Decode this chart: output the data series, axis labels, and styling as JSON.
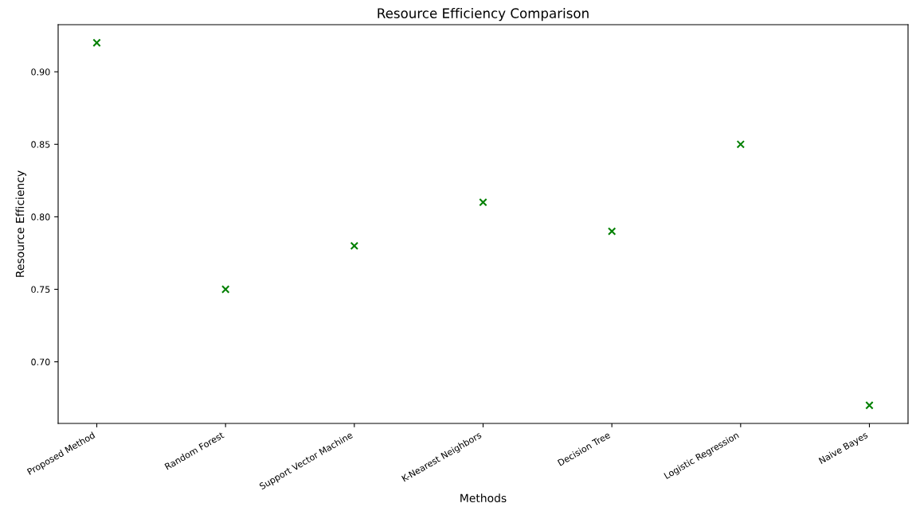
{
  "chart_data": {
    "type": "scatter",
    "title": "Resource Efficiency Comparison",
    "xlabel": "Methods",
    "ylabel": "Resource Efficiency",
    "categories": [
      "Proposed Method",
      "Random Forest",
      "Support Vector Machine",
      "K-Nearest Neighbors",
      "Decision Tree",
      "Logistic Regression",
      "Naive Bayes"
    ],
    "series": [
      {
        "color": "#008000",
        "values": [
          0.92,
          0.75,
          0.78,
          0.81,
          0.79,
          0.85,
          0.67
        ]
      }
    ],
    "marker": "cross",
    "ylim": [
      0.6575,
      0.9325
    ],
    "yticks": [
      {
        "value": 0.7,
        "label": "0.70"
      },
      {
        "value": 0.75,
        "label": "0.75"
      },
      {
        "value": 0.8,
        "label": "0.80"
      },
      {
        "value": 0.85,
        "label": "0.85"
      },
      {
        "value": 0.9,
        "label": "0.90"
      }
    ],
    "grid": false,
    "legend": false
  }
}
